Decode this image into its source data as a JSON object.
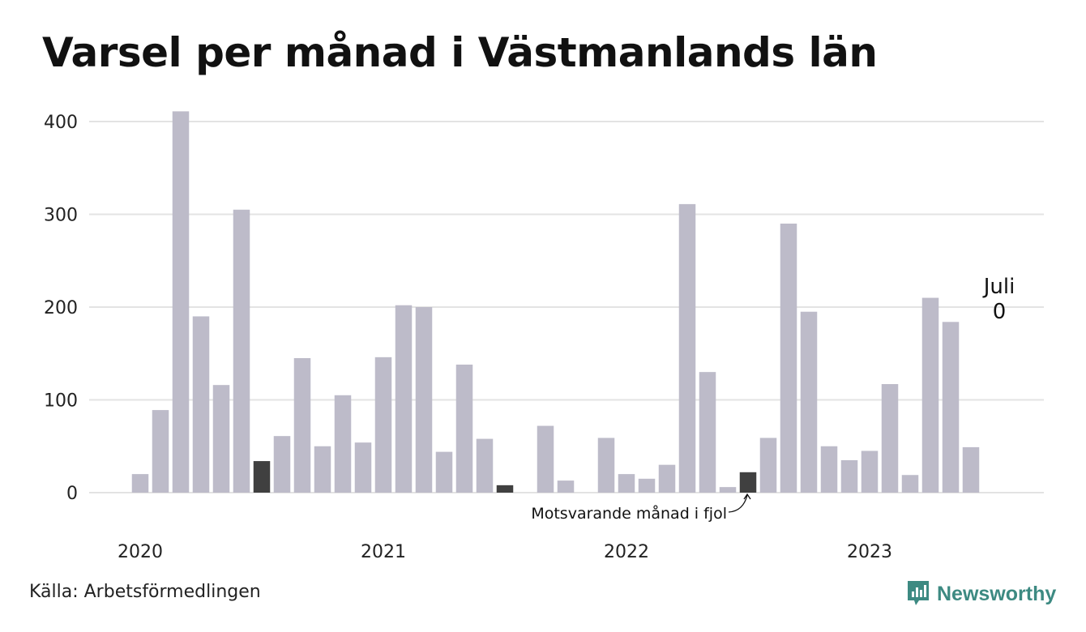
{
  "title": "Varsel per månad i Västmanlands län",
  "source": "Källa: Arbetsförmedlingen",
  "brand": {
    "name": "Newsworthy",
    "color": "#3d8a82",
    "icon": "newsworthy-logo-icon"
  },
  "colors": {
    "bar": "#bdbbc9",
    "highlight": "#404040",
    "grid": "#e3e3e3"
  },
  "chart_data": {
    "type": "bar",
    "title": "Varsel per månad i Västmanlands län",
    "xlabel": "",
    "ylabel": "",
    "ylim": [
      0,
      400
    ],
    "yticks": [
      0,
      100,
      200,
      300,
      400
    ],
    "grid": true,
    "x_tick_labels": [
      "2020",
      "2021",
      "2022",
      "2023"
    ],
    "months": [
      "2020-01",
      "2020-02",
      "2020-03",
      "2020-04",
      "2020-05",
      "2020-06",
      "2020-07",
      "2020-08",
      "2020-09",
      "2020-10",
      "2020-11",
      "2020-12",
      "2021-01",
      "2021-02",
      "2021-03",
      "2021-04",
      "2021-05",
      "2021-06",
      "2021-07",
      "2021-08",
      "2021-09",
      "2021-10",
      "2021-11",
      "2021-12",
      "2022-01",
      "2022-02",
      "2022-03",
      "2022-04",
      "2022-05",
      "2022-06",
      "2022-07",
      "2022-08",
      "2022-09",
      "2022-10",
      "2022-11",
      "2022-12",
      "2023-01",
      "2023-02",
      "2023-03",
      "2023-04",
      "2023-05",
      "2023-06",
      "2023-07"
    ],
    "values": [
      20,
      89,
      411,
      190,
      116,
      305,
      34,
      61,
      145,
      50,
      105,
      54,
      146,
      202,
      200,
      44,
      138,
      58,
      8,
      0,
      72,
      13,
      0,
      59,
      20,
      15,
      30,
      311,
      130,
      6,
      22,
      59,
      290,
      195,
      50,
      35,
      45,
      117,
      19,
      210,
      184,
      49,
      0
    ],
    "highlighted_months": [
      "2020-07",
      "2021-07",
      "2022-07"
    ],
    "callout": {
      "label": "Juli",
      "value": "0"
    },
    "annotation": {
      "text": "Motsvarande månad i fjol",
      "month": "2022-07"
    }
  }
}
